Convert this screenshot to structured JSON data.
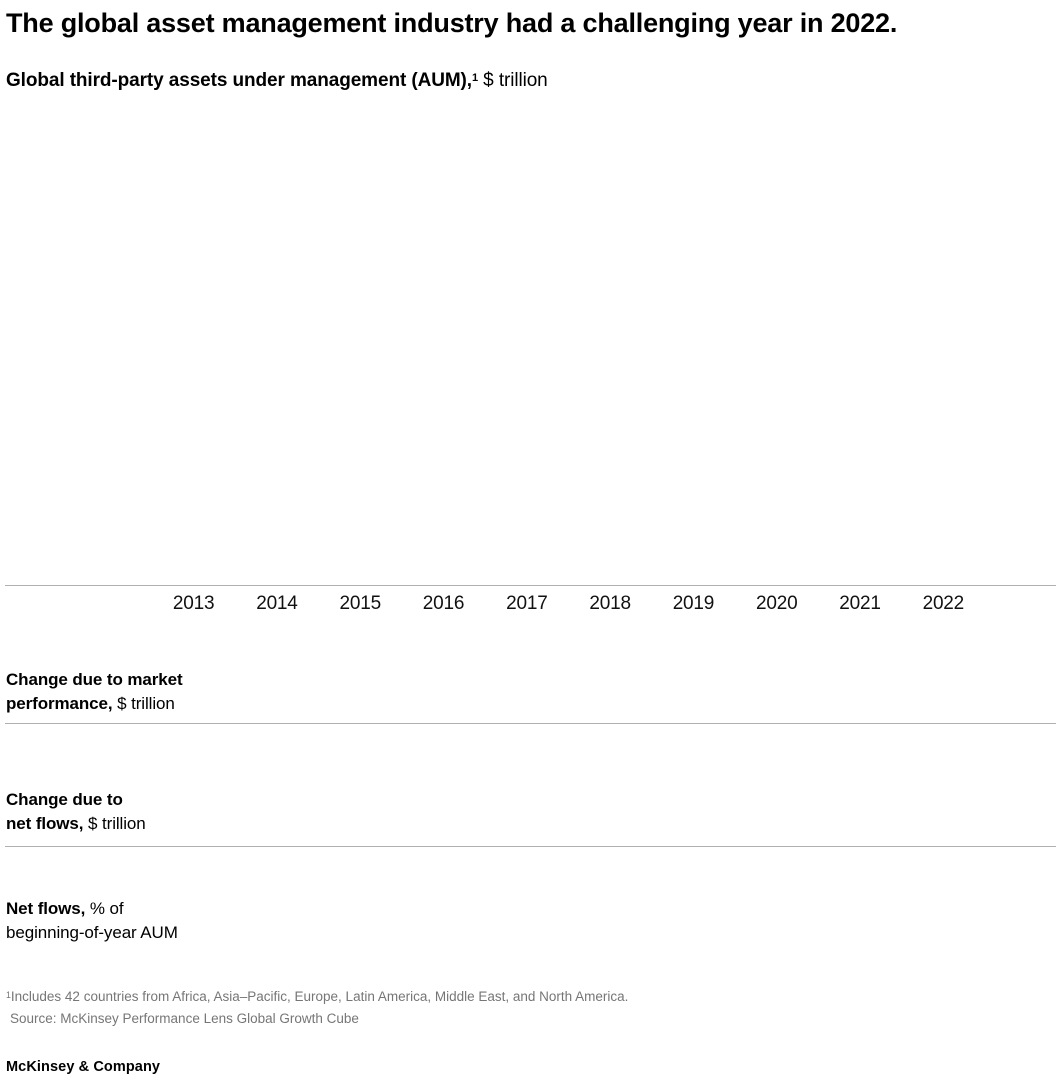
{
  "page": {
    "title": "The global asset management industry had a challenging year in 2022.",
    "brand": "McKinsey & Company"
  },
  "chart_header": {
    "subtitle_bold": "Global third-party assets under management (AUM),",
    "footnote_marker": "1",
    "subtitle_unit": " $ trillion"
  },
  "row_labels": {
    "market_performance": {
      "line1_bold": "Change due to market",
      "line2_bold": "performance,",
      "line2_unit": " $ trillion"
    },
    "net_flows_abs": {
      "line1_bold": "Change due to",
      "line2_bold": "net flows,",
      "line2_unit": " $ trillion"
    },
    "net_flows_pct": {
      "line1_bold": "Net flows,",
      "line1_unit": " % of",
      "line2": "beginning-of-year AUM"
    }
  },
  "footnote": {
    "marker": "1",
    "text": "Includes 42 countries from Africa, Asia–Pacific, Europe, Latin America, Middle East, and North America."
  },
  "source": "Source: McKinsey Performance Lens Global Growth Cube",
  "colors": {
    "text": "#000000",
    "muted_text": "#767676",
    "rule": "#b0b0b0",
    "background": "#ffffff"
  },
  "chart_data": {
    "type": "bar",
    "title": "Global third-party assets under management (AUM), $ trillion",
    "categories": [
      "2013",
      "2014",
      "2015",
      "2016",
      "2017",
      "2018",
      "2019",
      "2020",
      "2021",
      "2022"
    ],
    "series": [
      {
        "name": "Global third-party AUM, $ trillion",
        "values": []
      },
      {
        "name": "Change due to market performance, $ trillion",
        "values": []
      },
      {
        "name": "Change due to net flows, $ trillion",
        "values": []
      },
      {
        "name": "Net flows, % of beginning-of-year AUM",
        "values": []
      }
    ],
    "xlabel": "",
    "ylabel": "",
    "grid": false,
    "legend_position": "none",
    "note": "Chart body is blank in the screenshot; no bar/value marks are rendered. Only the x-axis year labels, row headers, baseline rules, footnote, and source are visible."
  }
}
